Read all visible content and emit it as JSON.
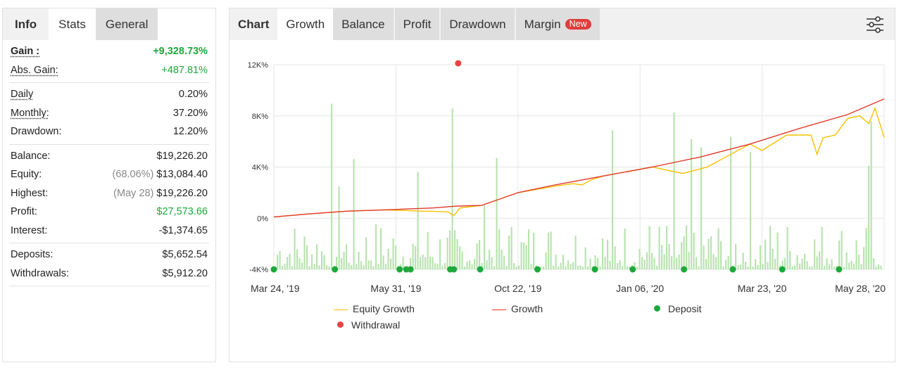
{
  "left": {
    "tabs": [
      {
        "label": "Info"
      },
      {
        "label": "Stats"
      },
      {
        "label": "General"
      }
    ],
    "groups": [
      [
        {
          "key": "Gain :",
          "value": "+9,328.73%",
          "style": "gain"
        },
        {
          "key": "Abs. Gain:",
          "value": "+487.81%",
          "style": "absgain"
        }
      ],
      [
        {
          "key": "Daily",
          "value": "0.20%",
          "style": "u"
        },
        {
          "key": "Monthly:",
          "value": "37.20%",
          "style": "u"
        },
        {
          "key": "Drawdown:",
          "value": "12.20%",
          "style": "plain"
        }
      ],
      [
        {
          "key": "Balance:",
          "value": "$19,226.20",
          "style": "plain"
        },
        {
          "key": "Equity:",
          "note": "(68.06%)",
          "value": "$13,084.40",
          "style": "plain"
        },
        {
          "key": "Highest:",
          "note": "(May 28)",
          "value": "$19,226.20",
          "style": "plain"
        },
        {
          "key": "Profit:",
          "value": "$27,573.66",
          "style": "green"
        },
        {
          "key": "Interest:",
          "value": "-$1,374.65",
          "style": "plain"
        }
      ],
      [
        {
          "key": "Deposits:",
          "value": "$5,652.54",
          "style": "plain"
        },
        {
          "key": "Withdrawals:",
          "value": "$5,912.20",
          "style": "plain"
        }
      ]
    ]
  },
  "right": {
    "tabs": [
      {
        "label": "Chart"
      },
      {
        "label": "Growth"
      },
      {
        "label": "Balance"
      },
      {
        "label": "Profit"
      },
      {
        "label": "Drawdown"
      },
      {
        "label": "Margin"
      }
    ],
    "badge": "New",
    "settings_icon": "sliders-icon"
  },
  "chart_data": {
    "type": "line",
    "y_ticks": [
      "12K%",
      "8K%",
      "4K%",
      "0%",
      "-4K%"
    ],
    "y_tick_values": [
      12000,
      8000,
      4000,
      0,
      -4000
    ],
    "ylim": [
      -4000,
      12000
    ],
    "x_ticks": [
      "Mar 24, '19",
      "May 31, '19",
      "Oct 22, '19",
      "Jan 06, '20",
      "Mar 23, '20",
      "May 28, '20"
    ],
    "grid": true,
    "colors": {
      "equity": "#f5c000",
      "growth": "#e0392b",
      "deposit": "#1ea83c",
      "withdrawal": "#e84444",
      "bars": "#b9e3b0"
    },
    "legend": [
      {
        "name": "Equity Growth",
        "kind": "line",
        "color": "#f5c000"
      },
      {
        "name": "Growth",
        "kind": "line",
        "color": "#e0392b"
      },
      {
        "name": "Deposit",
        "kind": "dot",
        "color": "#1ea83c"
      },
      {
        "name": "Withdrawal",
        "kind": "dot",
        "color": "#e84444"
      }
    ],
    "series": [
      {
        "name": "Growth",
        "x": [
          0,
          6,
          12,
          18,
          26,
          30,
          34,
          40,
          46,
          54,
          62,
          70,
          78,
          86,
          94,
          100
        ],
        "y": [
          100,
          350,
          550,
          650,
          800,
          950,
          1000,
          2000,
          2600,
          3300,
          4000,
          4800,
          5800,
          7000,
          8100,
          9330
        ]
      },
      {
        "name": "Equity Growth",
        "x": [
          0,
          6,
          12,
          18,
          28.5,
          29.5,
          30.5,
          34,
          40,
          46,
          49,
          50.5,
          52,
          54,
          62,
          67,
          71,
          78,
          80,
          84,
          88,
          89,
          90,
          92,
          94,
          96,
          97.5,
          98.5,
          100
        ],
        "y": [
          100,
          350,
          550,
          650,
          500,
          200,
          800,
          1000,
          2000,
          2500,
          2700,
          2600,
          3000,
          3300,
          4000,
          3500,
          4000,
          5800,
          5300,
          6500,
          6500,
          5000,
          6300,
          6500,
          7800,
          8000,
          7400,
          8600,
          6300
        ]
      },
      {
        "name": "Deposit",
        "x": [
          0,
          10,
          20.6,
          21.7,
          22.4,
          28.9,
          29.5,
          33.8,
          43.2,
          52.6,
          58.8,
          67.2,
          75.2,
          83.3,
          92.6
        ],
        "y": [
          -4000,
          -4000,
          -4000,
          -4000,
          -4000,
          -4000,
          -4000,
          -4000,
          -4000,
          -4000,
          -4000,
          -4000,
          -4000,
          -4000,
          -4000
        ]
      },
      {
        "name": "Withdrawal",
        "x": [
          30.2
        ],
        "y": [
          12000
        ]
      }
    ]
  }
}
